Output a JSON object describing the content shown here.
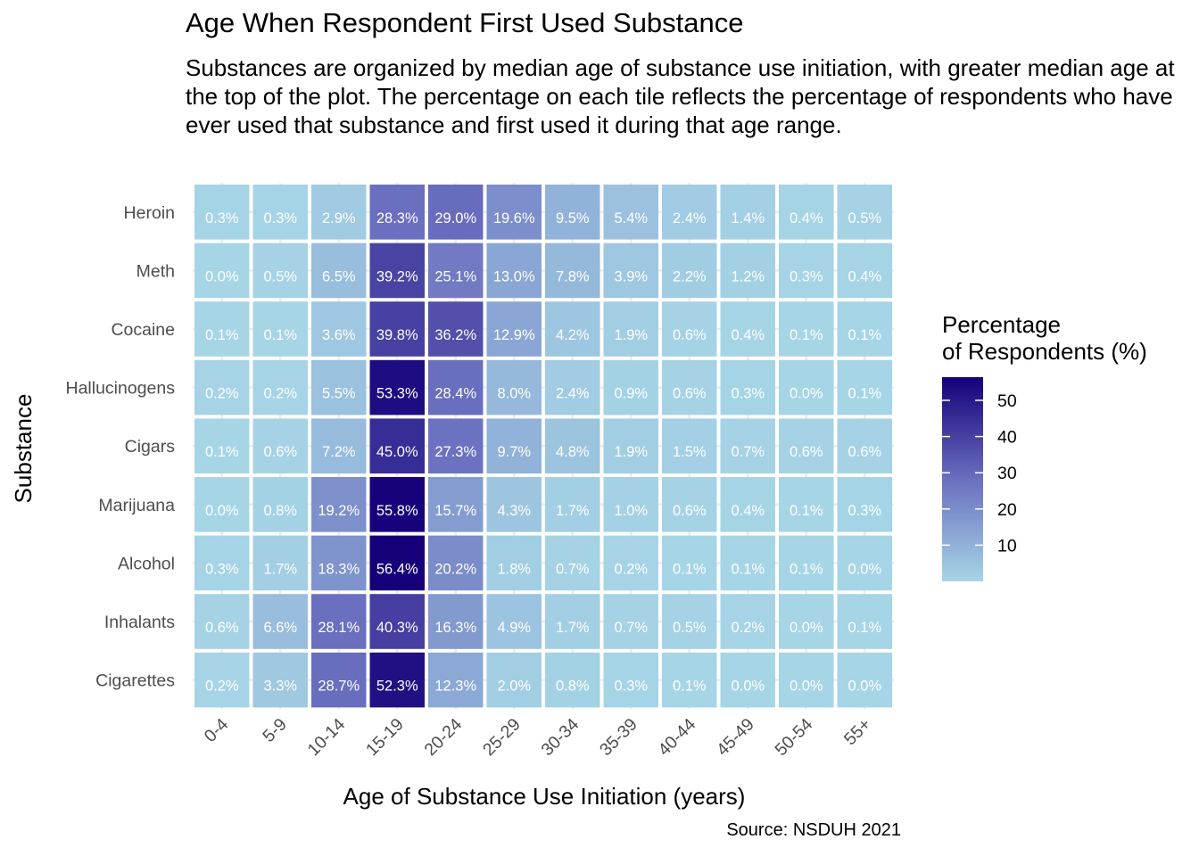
{
  "chart_data": {
    "type": "heatmap",
    "title": "Age When Respondent First Used Substance",
    "subtitle": "Substances are organized by median age of substance use initiation, with greater median age at the top of the plot. The percentage on each tile reflects the percentage of respondents who have ever used that substance and first used it during that age range.",
    "xlabel": "Age of Substance Use Initiation (years)",
    "ylabel": "Substance",
    "caption": "Source: NSDUH 2021",
    "legend_title": "Percentage\nof Respondents (%)",
    "legend_ticks": [
      10,
      20,
      30,
      40,
      50
    ],
    "color_low": "#a6d5e6",
    "color_high": "#15007a",
    "value_range": [
      0,
      56.4
    ],
    "x_categories": [
      "0-4",
      "5-9",
      "10-14",
      "15-19",
      "20-24",
      "25-29",
      "30-34",
      "35-39",
      "40-44",
      "45-49",
      "50-54",
      "55+"
    ],
    "y_categories": [
      "Heroin",
      "Meth",
      "Cocaine",
      "Hallucinogens",
      "Cigars",
      "Marijuana",
      "Alcohol",
      "Inhalants",
      "Cigarettes"
    ],
    "values": [
      [
        0.3,
        0.3,
        2.9,
        28.3,
        29.0,
        19.6,
        9.5,
        5.4,
        2.4,
        1.4,
        0.4,
        0.5
      ],
      [
        0.0,
        0.5,
        6.5,
        39.2,
        25.1,
        13.0,
        7.8,
        3.9,
        2.2,
        1.2,
        0.3,
        0.4
      ],
      [
        0.1,
        0.1,
        3.6,
        39.8,
        36.2,
        12.9,
        4.2,
        1.9,
        0.6,
        0.4,
        0.1,
        0.1
      ],
      [
        0.2,
        0.2,
        5.5,
        53.3,
        28.4,
        8.0,
        2.4,
        0.9,
        0.6,
        0.3,
        0.0,
        0.1
      ],
      [
        0.1,
        0.6,
        7.2,
        45.0,
        27.3,
        9.7,
        4.8,
        1.9,
        1.5,
        0.7,
        0.6,
        0.6
      ],
      [
        0.0,
        0.8,
        19.2,
        55.8,
        15.7,
        4.3,
        1.7,
        1.0,
        0.6,
        0.4,
        0.1,
        0.3
      ],
      [
        0.3,
        1.7,
        18.3,
        56.4,
        20.2,
        1.8,
        0.7,
        0.2,
        0.1,
        0.1,
        0.1,
        0.0
      ],
      [
        0.6,
        6.6,
        28.1,
        40.3,
        16.3,
        4.9,
        1.7,
        0.7,
        0.5,
        0.2,
        0.0,
        0.1
      ],
      [
        0.2,
        3.3,
        28.7,
        52.3,
        12.3,
        2.0,
        0.8,
        0.3,
        0.1,
        0.0,
        0.0,
        0.0
      ]
    ]
  }
}
